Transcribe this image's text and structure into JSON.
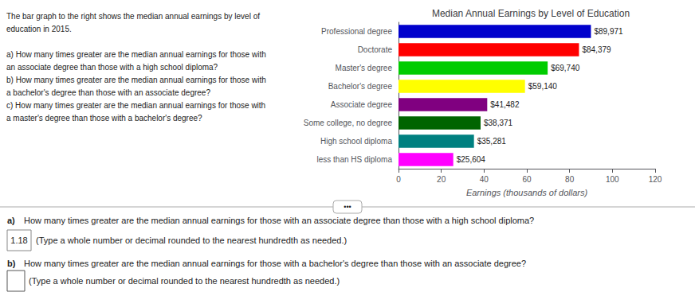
{
  "chart_data": {
    "type": "bar",
    "orientation": "horizontal",
    "title": "Median Annual Earnings by Level of Education",
    "xlabel": "Earnings (thousands of dollars)",
    "categories": [
      "less than HS diploma",
      "High school diploma",
      "Some college, no degree",
      "Associate degree",
      "Bachelor's degree",
      "Master's degree",
      "Doctorate",
      "Professional degree"
    ],
    "values": [
      25.604,
      35.281,
      38.371,
      41.482,
      59.14,
      69.74,
      84.379,
      89.971
    ],
    "value_labels": [
      "$25,604",
      "$35,281",
      "$38,371",
      "$41,482",
      "$59,140",
      "$69,740",
      "$84,379",
      "$89,971"
    ],
    "colors": [
      "#ff00ff",
      "#008080",
      "#006400",
      "#800080",
      "#ffff00",
      "#00cc00",
      "#ff0000",
      "#0000cc"
    ],
    "xlim": [
      0,
      120
    ],
    "xticks": [
      0,
      20,
      40,
      60,
      80,
      100,
      120
    ],
    "grid": false,
    "data_labels": true,
    "annotations": [
      "The bar graph to the right shows the median annual earnings by level of\neducation in 2015.",
      "a) How many times greater are the median annual earnings for those with\nan associate degree than those with a high school diploma?",
      "b) How many times greater are the median annual earnings for those with\na bachelor's degree than those with an associate degree?",
      "c) How many times greater are the median annual earnings for those with\na master's degree than those with a bachelor's degree?",
      "•••",
      "a)",
      "How many times greater are the median annual earnings for those with an associate degree than those with a high school diploma?",
      "1.18",
      " (Type a whole number or decimal rounded to the nearest hundredth as needed.)",
      "b)",
      "How many times greater are the median annual earnings for those with a bachelor's degree than those with an associate degree?",
      "(Type a whole number or decimal rounded to the nearest hundredth as needed.)"
    ]
  }
}
